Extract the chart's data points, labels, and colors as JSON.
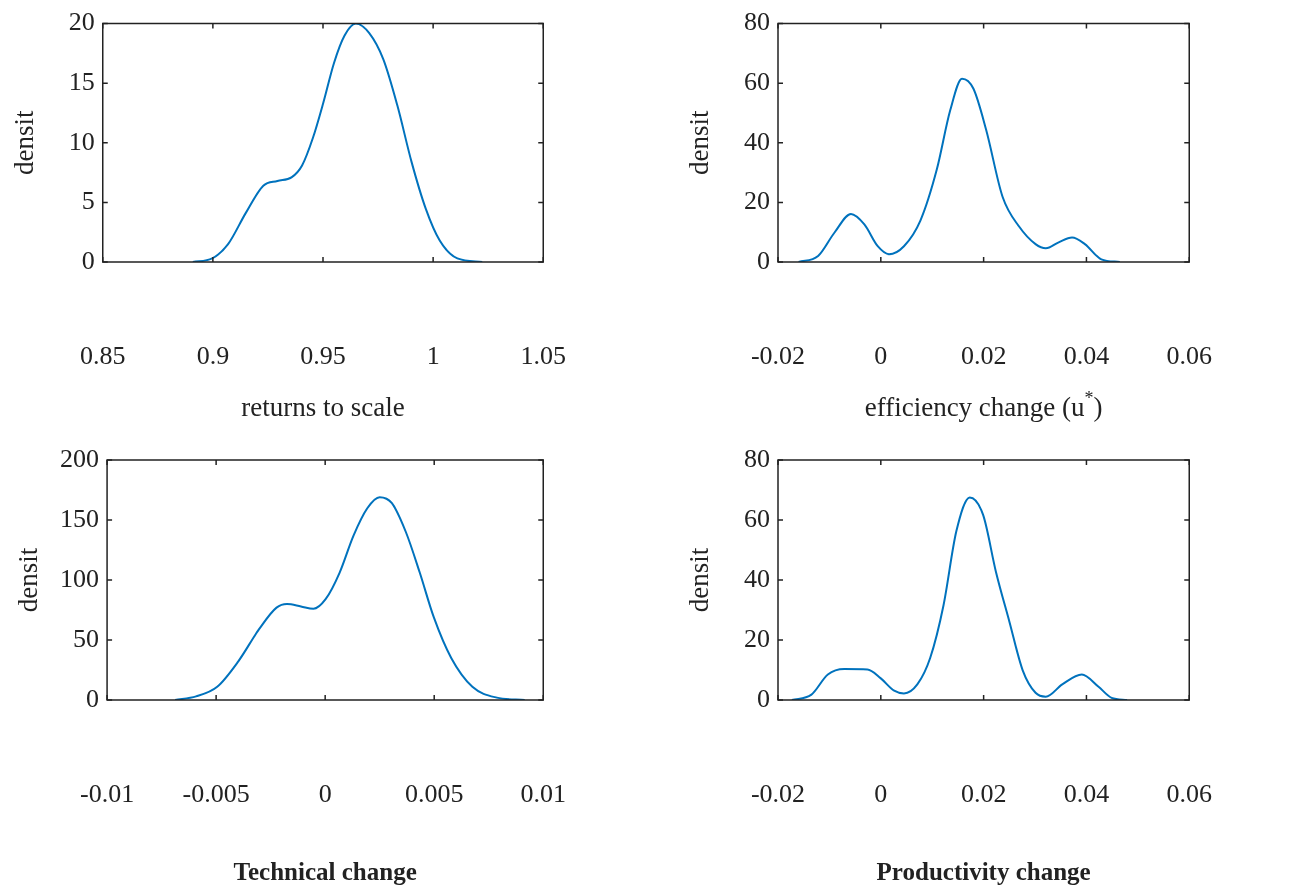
{
  "chart_data": [
    {
      "type": "line",
      "xlabel": "returns to scale",
      "ylabel": "densit",
      "xlim": [
        0.85,
        1.05
      ],
      "xticks": [
        0.85,
        0.9,
        0.95,
        1,
        1.05
      ],
      "ylim": [
        0,
        20
      ],
      "yticks": [
        0,
        5,
        10,
        15,
        20
      ],
      "grid": false,
      "legend": false,
      "marker": "none",
      "line_style": "solid",
      "x": [
        0.8909,
        0.8997,
        0.9069,
        0.9149,
        0.9229,
        0.9293,
        0.9357,
        0.9405,
        0.9454,
        0.9502,
        0.955,
        0.9598,
        0.9649,
        0.971,
        0.9774,
        0.9838,
        0.9902,
        0.9966,
        1.003,
        1.011,
        1.0223
      ],
      "series": [
        {
          "color": "#0072bd",
          "values": [
            0,
            0.3,
            1.5,
            4.1,
            6.4,
            6.8,
            7.1,
            8.1,
            10.4,
            13.4,
            16.7,
            19.0,
            20,
            19.2,
            17.0,
            13.1,
            8.4,
            4.5,
            1.8,
            0.3,
            0
          ]
        }
      ]
    },
    {
      "type": "line",
      "xlabel": "efficiency change (u$^{*}$)",
      "ylabel": "densit",
      "xlim": [
        -0.02,
        0.06
      ],
      "xticks": [
        -0.02,
        0,
        0.02,
        0.04,
        0.06
      ],
      "ylim": [
        0,
        80
      ],
      "yticks": [
        0,
        20,
        40,
        60,
        80
      ],
      "grid": false,
      "legend": false,
      "marker": "none",
      "line_style": "solid",
      "x": [
        -0.016,
        -0.0122,
        -0.009,
        -0.0058,
        -0.0032,
        -0.0006,
        0.0016,
        0.0045,
        0.0077,
        0.0109,
        0.0135,
        0.0158,
        0.018,
        0.0205,
        0.0237,
        0.0269,
        0.0301,
        0.0321,
        0.0346,
        0.0372,
        0.0397,
        0.0429,
        0.0465
      ],
      "series": [
        {
          "color": "#0072bd",
          "values": [
            0,
            2,
            9.9,
            16.1,
            12.6,
            5.3,
            2.6,
            5.3,
            13.9,
            31.1,
            50.9,
            61.5,
            58.2,
            44.3,
            21.8,
            11.9,
            6,
            4.6,
            6.6,
            8.2,
            6,
            0.9,
            0
          ]
        }
      ]
    },
    {
      "type": "line",
      "title": "Technical change",
      "ylabel": "densit",
      "xlim": [
        -0.01,
        0.01
      ],
      "xticks": [
        -0.01,
        -0.005,
        0,
        0.005,
        0.01
      ],
      "ylim": [
        0,
        200
      ],
      "yticks": [
        0,
        50,
        100,
        150,
        200
      ],
      "grid": false,
      "legend": false,
      "marker": "none",
      "line_style": "solid",
      "x": [
        -0.00688,
        -0.00592,
        -0.00495,
        -0.00399,
        -0.00303,
        -0.00223,
        -0.00175,
        -0.00111,
        -0.00054,
        2e-05,
        0.00066,
        0.0013,
        0.00194,
        0.0025,
        0.00306,
        0.0037,
        0.00434,
        0.00498,
        0.00578,
        0.00675,
        0.00787,
        0.00915
      ],
      "series": [
        {
          "color": "#0072bd",
          "values": [
            0,
            3,
            11,
            32,
            59,
            77,
            80,
            78,
            76,
            84,
            106,
            137,
            160,
            169,
            164,
            140,
            106,
            69,
            35,
            11,
            2,
            0
          ]
        }
      ]
    },
    {
      "type": "line",
      "title": "Productivity change",
      "ylabel": "densit",
      "xlim": [
        -0.02,
        0.06
      ],
      "xticks": [
        -0.02,
        0,
        0.02,
        0.04,
        0.06
      ],
      "ylim": [
        0,
        80
      ],
      "yticks": [
        0,
        20,
        40,
        60,
        80
      ],
      "grid": false,
      "legend": false,
      "marker": "none",
      "line_style": "solid",
      "x": [
        -0.0173,
        -0.0135,
        -0.0103,
        -0.0071,
        -0.0026,
        0,
        0.0026,
        0.0045,
        0.0071,
        0.0096,
        0.0122,
        0.0147,
        0.0173,
        0.0199,
        0.0224,
        0.025,
        0.0276,
        0.0301,
        0.0321,
        0.0353,
        0.0391,
        0.0423,
        0.0449,
        0.0479
      ],
      "series": [
        {
          "color": "#0072bd",
          "values": [
            0,
            1.8,
            8.5,
            10.3,
            10.2,
            7.2,
            3.1,
            2.2,
            5.2,
            14,
            31.6,
            56.3,
            67.5,
            61.7,
            42.7,
            26.2,
            9.9,
            2.4,
            1.1,
            5.2,
            8.5,
            4.5,
            0.7,
            0
          ]
        }
      ]
    }
  ]
}
